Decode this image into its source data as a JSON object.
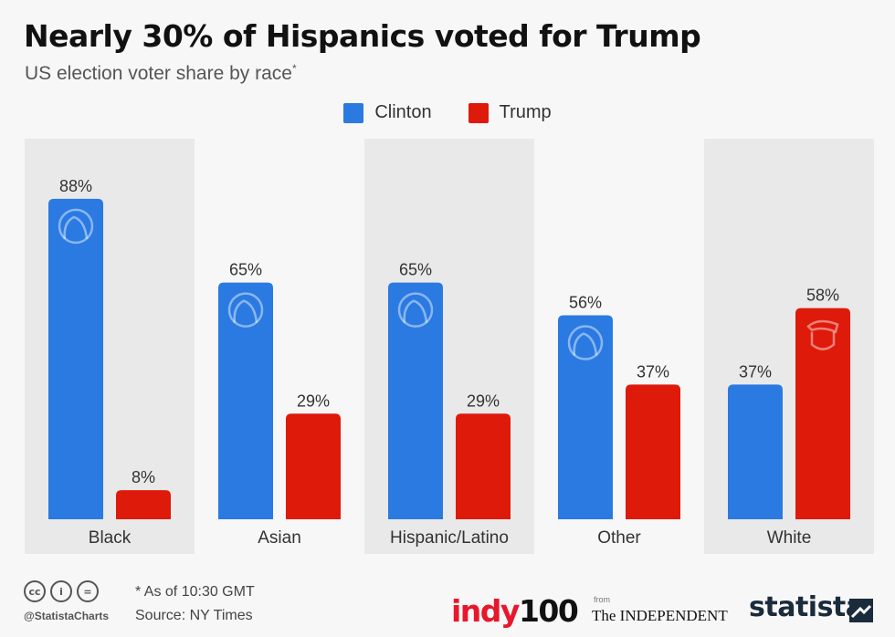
{
  "header": {
    "title": "Nearly 30% of Hispanics voted for Trump",
    "subtitle": "US election voter share by race",
    "subtitle_mark": "*"
  },
  "legend": [
    {
      "label": "Clinton",
      "color": "#2a7ae2"
    },
    {
      "label": "Trump",
      "color": "#de1a0b"
    }
  ],
  "chart_data": {
    "type": "bar",
    "categories": [
      "Black",
      "Asian",
      "Hispanic/Latino",
      "Other",
      "White"
    ],
    "series": [
      {
        "name": "Clinton",
        "values": [
          88,
          65,
          65,
          56,
          37
        ],
        "labels": [
          "88%",
          "65%",
          "65%",
          "56%",
          "37%"
        ],
        "color": "#2a7ae2"
      },
      {
        "name": "Trump",
        "values": [
          8,
          29,
          29,
          37,
          58
        ],
        "labels": [
          "8%",
          "29%",
          "29%",
          "37%",
          "58%"
        ],
        "color": "#de1a0b"
      }
    ],
    "ylim": [
      0,
      100
    ],
    "grid": false,
    "legend_position": "top-center",
    "shaded_bands": [
      "Black",
      "Hispanic/Latino",
      "White"
    ],
    "icons": {
      "Clinton": "clinton-face-icon",
      "Trump": "trump-face-icon"
    }
  },
  "footer": {
    "note": "* As of 10:30 GMT",
    "source": "Source: NY Times",
    "handle": "@StatistaCharts",
    "license_icons": [
      "cc-icon",
      "attribution-icon",
      "no-derivatives-icon"
    ],
    "cc_symbols": [
      "cc",
      "i",
      "="
    ]
  },
  "branding": {
    "indy_text": "indy",
    "indy_num": "100",
    "from": "from",
    "independent": "The INDEPENDENT",
    "statista": "statista"
  }
}
